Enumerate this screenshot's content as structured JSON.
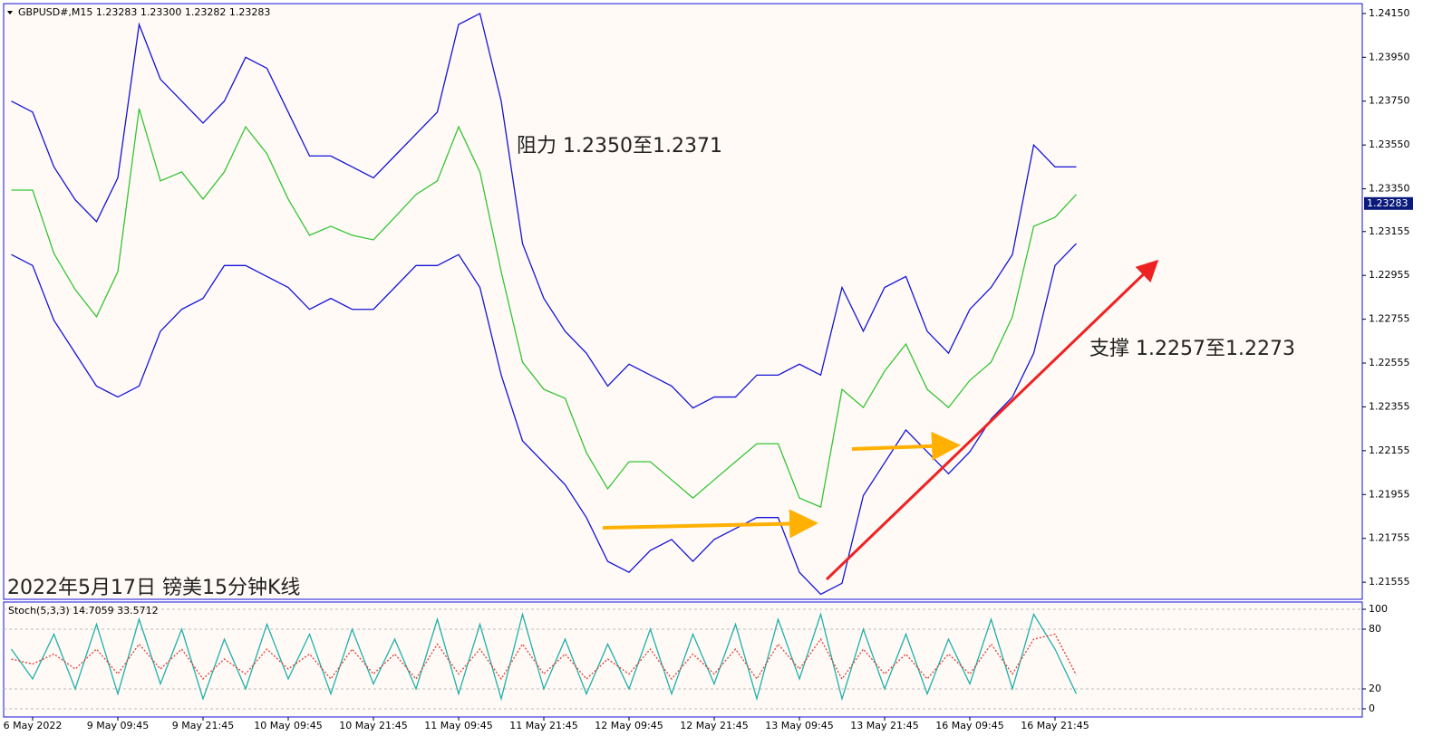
{
  "chart_data": [
    {
      "type": "line",
      "header": "GBPUSD#,M15  1.23283 1.23300 1.23282 1.23283",
      "annotations": [
        "阻力 1.2350至1.2371",
        "支撑 1.2257至1.2273",
        "2022年5月17日 镑美15分钟K线"
      ],
      "current_price": 1.23283,
      "categories": [
        null,
        "6 May 2022",
        null,
        null,
        null,
        "9 May 09:45",
        null,
        null,
        null,
        "9 May 21:45",
        null,
        null,
        null,
        "10 May 09:45",
        null,
        null,
        null,
        "10 May 21:45",
        null,
        null,
        null,
        "11 May 09:45",
        null,
        null,
        null,
        "11 May 21:45",
        null,
        null,
        null,
        "12 May 09:45",
        null,
        null,
        null,
        "12 May 21:45",
        null,
        null,
        null,
        "13 May 09:45",
        null,
        null,
        null,
        "13 May 21:45",
        null,
        null,
        null,
        "16 May 09:45",
        null,
        null,
        null,
        "16 May 21:45",
        null
      ],
      "series": [
        {
          "color": "#1414d8",
          "values": [
            1.2375,
            1.237,
            1.2345,
            1.233,
            1.232,
            1.234,
            1.241,
            1.2385,
            1.2375,
            1.2365,
            1.2375,
            1.2395,
            1.239,
            1.237,
            1.235,
            1.235,
            1.2345,
            1.234,
            1.235,
            1.236,
            1.237,
            1.241,
            1.2415,
            1.2375,
            1.231,
            1.2285,
            1.227,
            1.226,
            1.2245,
            1.2255,
            1.225,
            1.2245,
            1.2235,
            1.224,
            1.224,
            1.225,
            1.225,
            1.2255,
            1.225,
            1.229,
            1.227,
            1.229,
            1.2295,
            1.227,
            1.226,
            1.228,
            1.229,
            1.2305,
            1.2355,
            1.2345,
            1.2345
          ]
        },
        {
          "color": "#1414d8",
          "values": [
            1.2305,
            1.23,
            1.2275,
            1.226,
            1.2245,
            1.224,
            1.2245,
            1.227,
            1.228,
            1.2285,
            1.23,
            1.23,
            1.2295,
            1.229,
            1.228,
            1.2285,
            1.228,
            1.228,
            1.229,
            1.23,
            1.23,
            1.2305,
            1.229,
            1.225,
            1.222,
            1.221,
            1.22,
            1.2185,
            1.2165,
            1.216,
            1.217,
            1.2175,
            1.2165,
            1.2175,
            1.218,
            1.2185,
            1.2185,
            1.216,
            1.215,
            1.2155,
            1.2195,
            1.221,
            1.2225,
            1.2215,
            1.2205,
            1.2215,
            1.223,
            1.224,
            1.226,
            1.23,
            1.231
          ]
        },
        {
          "color": "#34c534",
          "values": [
            1.23344,
            1.23344,
            1.23055,
            1.2289,
            1.22766,
            1.22972,
            1.23716,
            1.23386,
            1.23427,
            1.23303,
            1.23427,
            1.23633,
            1.2351,
            1.23303,
            1.23138,
            1.23179,
            1.23138,
            1.23117,
            1.2322,
            1.23324,
            1.23386,
            1.23633,
            1.23427,
            1.22972,
            1.22559,
            1.22435,
            1.22394,
            1.22146,
            1.21981,
            1.22105,
            1.22105,
            1.22022,
            1.21939,
            1.22022,
            1.22105,
            1.22187,
            1.22187,
            1.21939,
            1.21898,
            1.22435,
            1.22352,
            1.22518,
            1.22642,
            1.22435,
            1.22352,
            1.22476,
            1.22559,
            1.22766,
            1.23179,
            1.2322,
            1.23324
          ]
        }
      ],
      "ylim": [
        1.21477,
        1.24195
      ],
      "yticks": [
        {
          "value": 1.2415,
          "label": "1.24150"
        },
        {
          "value": 1.2395,
          "label": "1.23950"
        },
        {
          "value": 1.2375,
          "label": "1.23750"
        },
        {
          "value": 1.2355,
          "label": "1.23550"
        },
        {
          "value": 1.2335,
          "label": "1.23350"
        },
        1.23155,
        1.22955,
        1.22755,
        1.22555,
        1.22355,
        1.22155,
        1.21955,
        1.21755,
        1.21555
      ]
    },
    {
      "type": "line",
      "title": "Stoch(5,3,3) 14.7059 33.5712",
      "series": [
        {
          "color": "#1fb0a8",
          "values": [
            60,
            30,
            75,
            20,
            85,
            15,
            90,
            25,
            80,
            10,
            70,
            20,
            85,
            30,
            75,
            15,
            80,
            25,
            70,
            20,
            90,
            15,
            85,
            10,
            95,
            20,
            70,
            15,
            65,
            20,
            80,
            15,
            75,
            25,
            85,
            10,
            90,
            30,
            95,
            10,
            80,
            20,
            75,
            15,
            70,
            25,
            90,
            20,
            95,
            60,
            15
          ]
        },
        {
          "color": "#e53935",
          "dashed": true,
          "values": [
            50,
            45,
            55,
            40,
            60,
            35,
            65,
            40,
            60,
            30,
            50,
            35,
            60,
            40,
            55,
            30,
            60,
            35,
            55,
            30,
            65,
            35,
            60,
            30,
            65,
            35,
            55,
            30,
            50,
            35,
            60,
            30,
            55,
            35,
            60,
            30,
            65,
            40,
            70,
            30,
            60,
            35,
            55,
            30,
            55,
            35,
            65,
            35,
            70,
            75,
            34
          ]
        }
      ],
      "ylim": [
        -8.2,
        107.3
      ],
      "yticks": [
        100,
        80,
        20,
        0
      ]
    }
  ]
}
